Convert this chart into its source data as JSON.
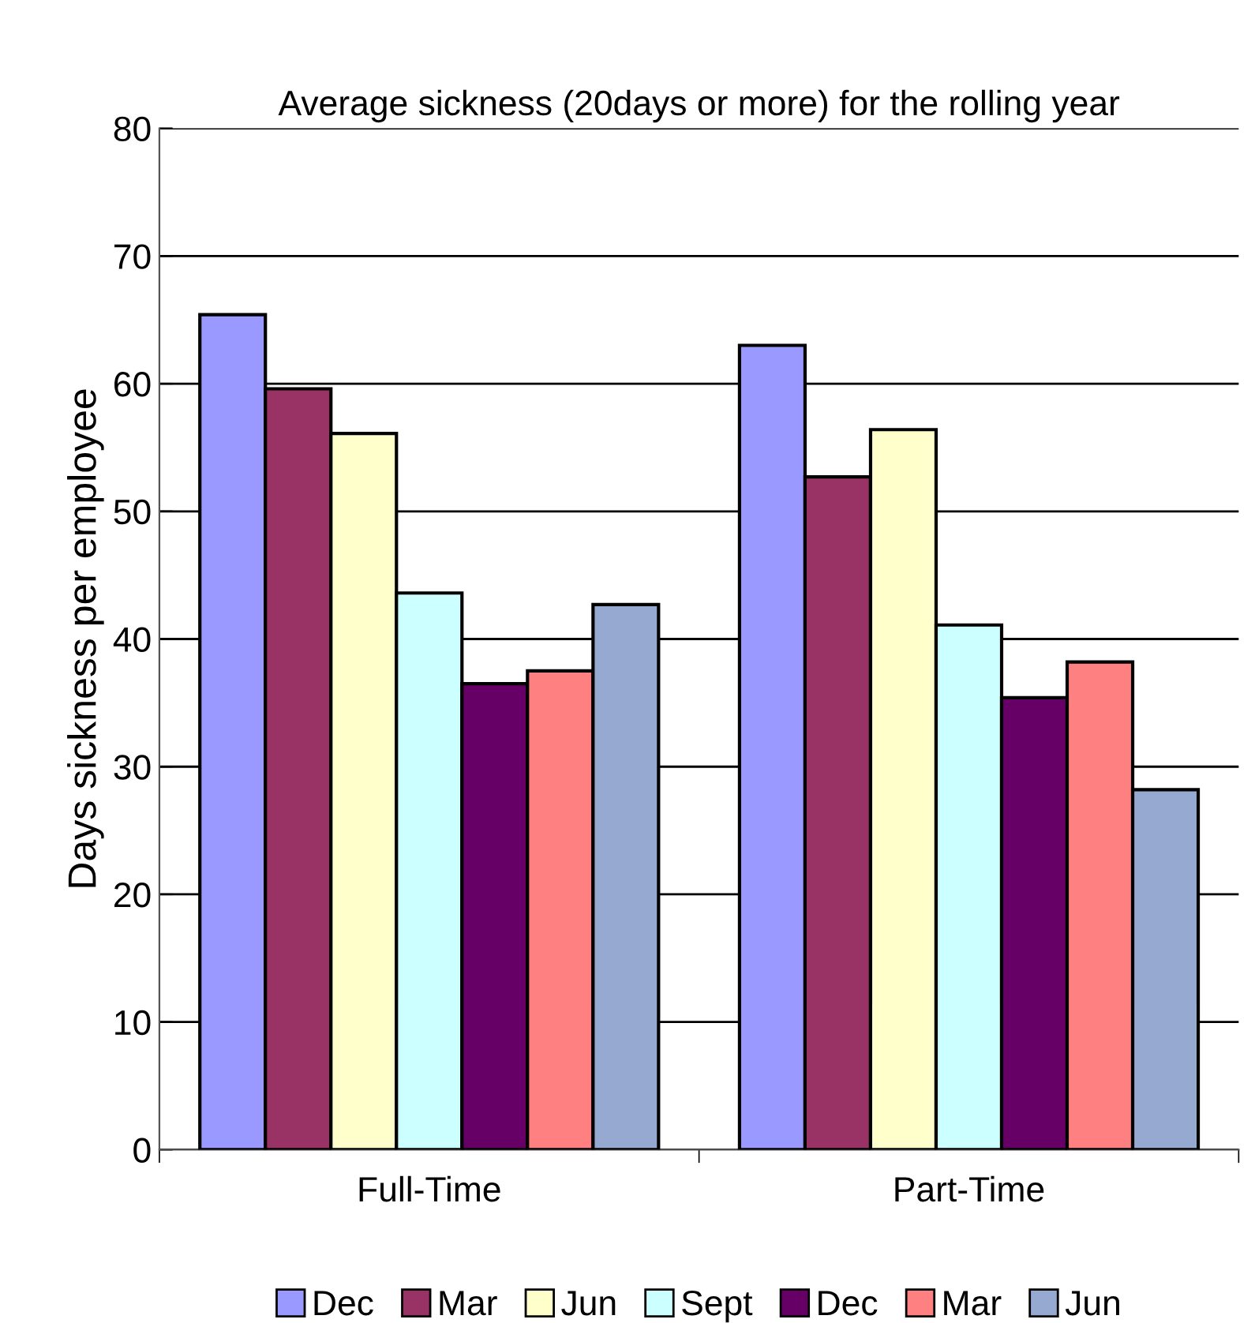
{
  "chart_data": {
    "type": "bar",
    "title": "Average sickness (20days or more) for the rolling year",
    "ylabel": "Days sickness per employee",
    "categories": [
      "Full-Time",
      "Part-Time"
    ],
    "series": [
      {
        "name": "Dec",
        "color": "#9999ff",
        "values": [
          65.4,
          63.0
        ]
      },
      {
        "name": "Mar",
        "color": "#993366",
        "values": [
          59.6,
          52.7
        ]
      },
      {
        "name": "Jun",
        "color": "#ffffcc",
        "values": [
          56.1,
          56.4
        ]
      },
      {
        "name": "Sept",
        "color": "#ccffff",
        "values": [
          43.6,
          41.1
        ]
      },
      {
        "name": "Dec",
        "color": "#660066",
        "values": [
          36.5,
          35.4
        ]
      },
      {
        "name": "Mar",
        "color": "#ff8080",
        "values": [
          37.5,
          38.2
        ]
      },
      {
        "name": "Jun",
        "color": "#95a9d1",
        "values": [
          42.7,
          28.2
        ]
      }
    ],
    "ylim": [
      0,
      80
    ],
    "yticks": [
      0,
      10,
      20,
      30,
      40,
      50,
      60,
      70,
      80
    ],
    "grid": "y",
    "legend": "bottom"
  }
}
